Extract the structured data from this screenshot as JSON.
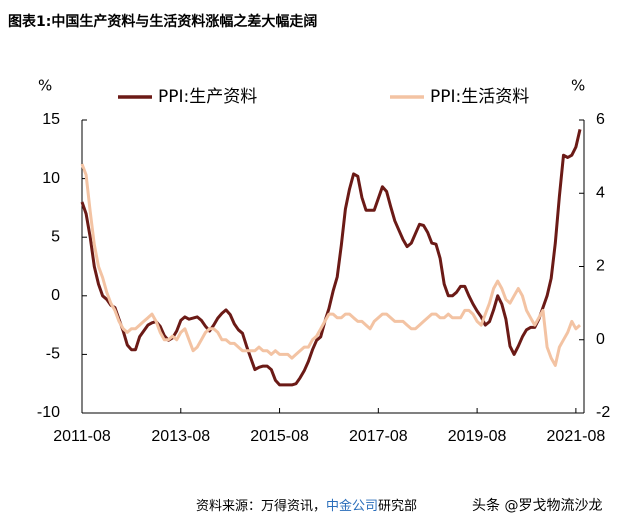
{
  "chart_data": {
    "type": "line",
    "title": "图表1:中国生产资料与生活资料涨幅之差大幅走阔",
    "y_label": "%",
    "y2_label": "%",
    "x": [
      "2011-08",
      "2011-09",
      "2011-10",
      "2011-11",
      "2011-12",
      "2012-01",
      "2012-02",
      "2012-03",
      "2012-04",
      "2012-05",
      "2012-06",
      "2012-07",
      "2012-08",
      "2012-09",
      "2012-10",
      "2012-11",
      "2012-12",
      "2013-01",
      "2013-02",
      "2013-03",
      "2013-04",
      "2013-05",
      "2013-06",
      "2013-07",
      "2013-08",
      "2013-09",
      "2013-10",
      "2013-11",
      "2013-12",
      "2014-01",
      "2014-02",
      "2014-03",
      "2014-04",
      "2014-05",
      "2014-06",
      "2014-07",
      "2014-08",
      "2014-09",
      "2014-10",
      "2014-11",
      "2014-12",
      "2015-01",
      "2015-02",
      "2015-03",
      "2015-04",
      "2015-05",
      "2015-06",
      "2015-07",
      "2015-08",
      "2015-09",
      "2015-10",
      "2015-11",
      "2015-12",
      "2016-01",
      "2016-02",
      "2016-03",
      "2016-04",
      "2016-05",
      "2016-06",
      "2016-07",
      "2016-08",
      "2016-09",
      "2016-10",
      "2016-11",
      "2016-12",
      "2017-01",
      "2017-02",
      "2017-03",
      "2017-04",
      "2017-05",
      "2017-06",
      "2017-07",
      "2017-08",
      "2017-09",
      "2017-10",
      "2017-11",
      "2017-12",
      "2018-01",
      "2018-02",
      "2018-03",
      "2018-04",
      "2018-05",
      "2018-06",
      "2018-07",
      "2018-08",
      "2018-09",
      "2018-10",
      "2018-11",
      "2018-12",
      "2019-01",
      "2019-02",
      "2019-03",
      "2019-04",
      "2019-05",
      "2019-06",
      "2019-07",
      "2019-08",
      "2019-09",
      "2019-10",
      "2019-11",
      "2019-12",
      "2020-01",
      "2020-02",
      "2020-03",
      "2020-04",
      "2020-05",
      "2020-06",
      "2020-07",
      "2020-08",
      "2020-09",
      "2020-10",
      "2020-11",
      "2020-12",
      "2021-01",
      "2021-02",
      "2021-03",
      "2021-04",
      "2021-05",
      "2021-06",
      "2021-07",
      "2021-08",
      "2021-09"
    ],
    "xticks": [
      "2011-08",
      "2013-08",
      "2015-08",
      "2017-08",
      "2019-08",
      "2021-08"
    ],
    "ylim": [
      -10,
      15
    ],
    "yticks": [
      -10,
      -5,
      0,
      5,
      10,
      15
    ],
    "y2lim": [
      -2,
      6
    ],
    "y2ticks": [
      -2,
      0,
      2,
      4,
      6
    ],
    "grid": false,
    "series": [
      {
        "name": "PPI:生产资料",
        "color": "#6b1a16",
        "values": [
          8.0,
          7.0,
          5.0,
          2.5,
          1.0,
          0.0,
          -0.3,
          -0.8,
          -1.0,
          -2.0,
          -3.0,
          -4.2,
          -4.6,
          -4.6,
          -3.5,
          -3.0,
          -2.5,
          -2.3,
          -2.2,
          -2.6,
          -3.4,
          -3.8,
          -3.6,
          -3.0,
          -2.1,
          -1.8,
          -2.0,
          -1.9,
          -1.8,
          -2.1,
          -2.6,
          -3.0,
          -2.5,
          -1.9,
          -1.5,
          -1.2,
          -1.6,
          -2.4,
          -2.9,
          -3.2,
          -4.3,
          -5.3,
          -6.3,
          -6.1,
          -6.0,
          -6.0,
          -6.3,
          -7.2,
          -7.6,
          -7.6,
          -7.6,
          -7.6,
          -7.5,
          -7.0,
          -6.4,
          -5.6,
          -4.6,
          -3.8,
          -3.5,
          -2.2,
          -1.1,
          0.4,
          1.6,
          4.3,
          7.4,
          9.1,
          10.4,
          10.2,
          8.4,
          7.3,
          7.3,
          7.3,
          8.3,
          9.3,
          8.9,
          7.6,
          6.4,
          5.6,
          4.8,
          4.2,
          4.5,
          5.3,
          6.1,
          6.0,
          5.4,
          4.5,
          4.4,
          3.2,
          1.0,
          0.0,
          0.0,
          0.3,
          0.8,
          0.8,
          0.0,
          -0.7,
          -1.3,
          -1.8,
          -2.5,
          -2.2,
          -1.2,
          0.0,
          -0.7,
          -2.0,
          -4.3,
          -5.0,
          -4.3,
          -3.5,
          -2.9,
          -2.7,
          -2.7,
          -2.0,
          -1.0,
          0.0,
          1.5,
          4.5,
          8.5,
          12.0,
          11.8,
          12.0,
          12.7,
          14.2
        ]
      },
      {
        "name": "PPI:生活资料",
        "color": "#f3c3a3",
        "axis": "y2",
        "values": [
          4.8,
          4.5,
          3.5,
          2.6,
          2.0,
          1.7,
          1.3,
          1.0,
          0.8,
          0.5,
          0.3,
          0.2,
          0.3,
          0.3,
          0.4,
          0.5,
          0.6,
          0.7,
          0.5,
          0.2,
          0.0,
          0.0,
          0.1,
          0.0,
          0.2,
          0.3,
          0.0,
          -0.3,
          -0.2,
          0.0,
          0.2,
          0.3,
          0.3,
          0.2,
          0.0,
          0.0,
          -0.1,
          -0.1,
          -0.2,
          -0.3,
          -0.3,
          -0.3,
          -0.3,
          -0.2,
          -0.3,
          -0.3,
          -0.4,
          -0.3,
          -0.4,
          -0.4,
          -0.4,
          -0.5,
          -0.4,
          -0.3,
          -0.2,
          -0.2,
          0.0,
          0.1,
          0.3,
          0.5,
          0.7,
          0.7,
          0.6,
          0.6,
          0.7,
          0.7,
          0.6,
          0.5,
          0.5,
          0.4,
          0.3,
          0.5,
          0.6,
          0.7,
          0.7,
          0.6,
          0.5,
          0.5,
          0.5,
          0.4,
          0.3,
          0.3,
          0.4,
          0.5,
          0.6,
          0.7,
          0.7,
          0.6,
          0.6,
          0.7,
          0.6,
          0.6,
          0.6,
          0.8,
          0.8,
          0.7,
          0.5,
          0.4,
          0.7,
          1.0,
          1.4,
          1.6,
          1.4,
          1.1,
          1.0,
          1.2,
          1.4,
          1.2,
          0.8,
          0.6,
          0.4,
          0.6,
          0.8,
          -0.2,
          -0.5,
          -0.7,
          -0.2,
          0.0,
          0.2,
          0.5,
          0.3,
          0.4
        ]
      }
    ]
  },
  "source": [
    "资料来源：万得资讯，",
    "中金公司",
    "研究部"
  ],
  "watermark": "头条 @罗戈物流沙龙"
}
